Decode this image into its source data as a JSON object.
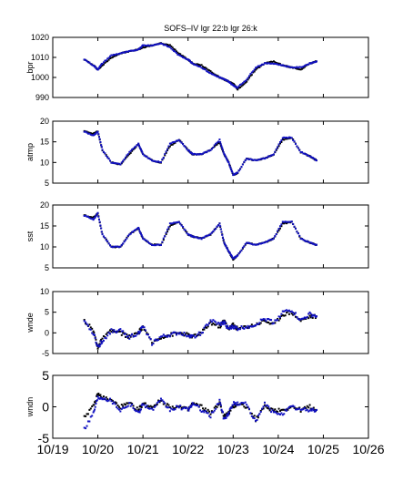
{
  "figure": {
    "title": "SOFS–IV  lgr 22:b lgr 26:k"
  },
  "colors": {
    "black_series": "#000000",
    "blue_series": "#1010c0",
    "axis": "#000000",
    "background": "#ffffff"
  },
  "chart_data": [
    {
      "type": "scatter",
      "ylabel": "bpr",
      "ylim": [
        990,
        1020
      ],
      "yticks": [
        990,
        1000,
        1010,
        1020
      ],
      "xlim": [
        0,
        7
      ],
      "grid": false,
      "x": [
        0.7,
        0.9,
        1.0,
        1.1,
        1.3,
        1.5,
        1.7,
        1.9,
        2.0,
        2.2,
        2.4,
        2.6,
        2.8,
        3.0,
        3.1,
        3.3,
        3.5,
        3.7,
        3.8,
        3.9,
        4.0,
        4.1,
        4.3,
        4.5,
        4.7,
        4.9,
        5.1,
        5.3,
        5.5,
        5.7,
        5.85
      ],
      "series": [
        {
          "name": "lgr 26:k",
          "values": [
            1009,
            1006,
            1004,
            1006,
            1010,
            1012,
            1013,
            1014,
            1015,
            1016,
            1017,
            1016,
            1012,
            1009,
            1007,
            1006,
            1003,
            1000,
            999,
            998,
            997,
            994,
            998,
            1004,
            1007,
            1008,
            1006,
            1005,
            1004,
            1007,
            1008
          ]
        },
        {
          "name": "lgr 22:b",
          "values": [
            1009,
            1006,
            1004,
            1007,
            1011,
            1012,
            1013,
            1014,
            1016,
            1016,
            1017,
            1015,
            1011,
            1009,
            1007,
            1005,
            1002,
            1000,
            999,
            998,
            996,
            995,
            999,
            1005,
            1007,
            1007,
            1006,
            1005,
            1005,
            1007,
            1008
          ]
        }
      ]
    },
    {
      "type": "scatter",
      "ylabel": "atmp",
      "ylim": [
        5,
        20
      ],
      "yticks": [
        5,
        10,
        15,
        20
      ],
      "xlim": [
        0,
        7
      ],
      "grid": false,
      "x": [
        0.7,
        0.9,
        1.0,
        1.1,
        1.3,
        1.5,
        1.7,
        1.9,
        2.0,
        2.2,
        2.4,
        2.6,
        2.8,
        3.0,
        3.1,
        3.3,
        3.5,
        3.7,
        3.8,
        3.9,
        4.0,
        4.1,
        4.3,
        4.5,
        4.7,
        4.9,
        5.1,
        5.3,
        5.5,
        5.7,
        5.85
      ],
      "series": [
        {
          "name": "lgr 26:k",
          "values": [
            17.5,
            17,
            17.5,
            13,
            10,
            9.5,
            12,
            14.5,
            12,
            10.5,
            10,
            14,
            15.5,
            13,
            12,
            12,
            13,
            15,
            12,
            10,
            7,
            7.5,
            11,
            10.5,
            11,
            12,
            15.5,
            16,
            12.5,
            11.5,
            10.5
          ]
        },
        {
          "name": "lgr 22:b",
          "values": [
            17.5,
            16.5,
            17.5,
            13,
            10,
            9.5,
            12.5,
            14.5,
            12,
            10.5,
            10,
            14.5,
            15.5,
            13,
            12,
            12,
            13,
            15.5,
            12,
            10,
            7,
            7.5,
            11,
            10.5,
            11,
            12,
            16,
            16,
            12.5,
            11.5,
            10.5
          ]
        }
      ]
    },
    {
      "type": "scatter",
      "ylabel": "sst",
      "ylim": [
        5,
        20
      ],
      "yticks": [
        5,
        10,
        15,
        20
      ],
      "xlim": [
        0,
        7
      ],
      "grid": false,
      "x": [
        0.7,
        0.9,
        1.0,
        1.1,
        1.3,
        1.5,
        1.7,
        1.9,
        2.0,
        2.2,
        2.4,
        2.6,
        2.8,
        3.0,
        3.1,
        3.3,
        3.5,
        3.7,
        3.8,
        3.9,
        4.0,
        4.1,
        4.3,
        4.5,
        4.7,
        4.9,
        5.1,
        5.3,
        5.5,
        5.7,
        5.85
      ],
      "series": [
        {
          "name": "lgr 26:k",
          "values": [
            17.5,
            17,
            18,
            13,
            10,
            10,
            13,
            14.5,
            12,
            10.5,
            10.5,
            15,
            16,
            13,
            12.5,
            12,
            13,
            15.5,
            11,
            9,
            7,
            8,
            11,
            10.5,
            11,
            12,
            15.5,
            16,
            12,
            11,
            10.5
          ]
        },
        {
          "name": "lgr 22:b",
          "values": [
            17.5,
            16.5,
            18,
            13,
            10,
            10,
            13,
            14.5,
            12,
            10.5,
            10.5,
            15.5,
            16,
            13,
            12.5,
            12,
            13,
            15.5,
            11,
            9,
            7.2,
            8,
            11,
            10.5,
            11,
            12,
            16,
            16,
            12,
            11,
            10.5
          ]
        }
      ]
    },
    {
      "type": "scatter",
      "ylabel": "wnde",
      "ylim": [
        -5,
        10
      ],
      "yticks": [
        -5,
        0,
        5,
        10
      ],
      "xlim": [
        0,
        7
      ],
      "grid": false,
      "x": [
        0.7,
        0.9,
        1.0,
        1.1,
        1.3,
        1.5,
        1.7,
        1.9,
        2.0,
        2.2,
        2.4,
        2.6,
        2.8,
        3.0,
        3.1,
        3.3,
        3.5,
        3.7,
        3.8,
        3.9,
        4.0,
        4.1,
        4.3,
        4.5,
        4.7,
        4.9,
        5.1,
        5.3,
        5.5,
        5.7,
        5.85
      ],
      "series": [
        {
          "name": "lgr 26:k",
          "values": [
            3,
            0.5,
            -3.5,
            -1.5,
            0.5,
            0,
            -1,
            0,
            1.5,
            -2.5,
            -1,
            -0.5,
            0,
            -0.5,
            -1,
            0,
            2.5,
            1.5,
            3,
            1,
            2,
            1,
            1.5,
            2,
            3,
            2,
            4.5,
            5,
            3,
            4,
            4
          ]
        },
        {
          "name": "lgr 22:b",
          "values": [
            2.5,
            0,
            -3.5,
            -2,
            0.5,
            0.5,
            -1,
            0,
            1.5,
            -2.5,
            -1,
            -0.5,
            0,
            -0.5,
            -1,
            0,
            3,
            2,
            2.5,
            1,
            1.5,
            1,
            1.5,
            2,
            3.5,
            2.5,
            5,
            5.5,
            3,
            4.5,
            4
          ]
        }
      ]
    },
    {
      "type": "scatter",
      "ylabel": "wndn",
      "ylim": [
        -5,
        5
      ],
      "yticks": [
        -5,
        0,
        5
      ],
      "xlim": [
        0,
        7
      ],
      "xticks": [
        0,
        1,
        2,
        3,
        4,
        5,
        6,
        7
      ],
      "xticklabels": [
        "10/19",
        "10/20",
        "10/21",
        "10/22",
        "10/23",
        "10/24",
        "10/25",
        "10/26"
      ],
      "grid": false,
      "x": [
        0.7,
        0.9,
        1.0,
        1.1,
        1.3,
        1.5,
        1.7,
        1.9,
        2.0,
        2.2,
        2.4,
        2.6,
        2.8,
        3.0,
        3.1,
        3.3,
        3.5,
        3.7,
        3.8,
        3.9,
        4.0,
        4.1,
        4.3,
        4.5,
        4.7,
        4.9,
        5.1,
        5.3,
        5.5,
        5.7,
        5.85
      ],
      "series": [
        {
          "name": "lgr 26:k",
          "values": [
            -1.5,
            0,
            2,
            1.5,
            1,
            0,
            0.5,
            -0.5,
            0.5,
            0,
            1,
            0,
            0,
            -0.5,
            0.5,
            0,
            -1,
            0.5,
            -1.5,
            -1,
            0,
            0.5,
            0,
            -2,
            0,
            -0.5,
            -0.5,
            0,
            -0.5,
            0,
            -0.5
          ]
        },
        {
          "name": "lgr 22:b",
          "values": [
            -3.5,
            -1,
            1.5,
            1.5,
            1,
            -0.5,
            0.5,
            -1,
            0.5,
            -0.5,
            1,
            -0.5,
            0,
            -0.5,
            0.5,
            -0.5,
            -1.5,
            1,
            -2,
            -1,
            0.5,
            0.5,
            0.5,
            -2.5,
            0.5,
            -1,
            -1,
            0,
            -0.5,
            -0.5,
            -0.5
          ]
        }
      ]
    }
  ]
}
